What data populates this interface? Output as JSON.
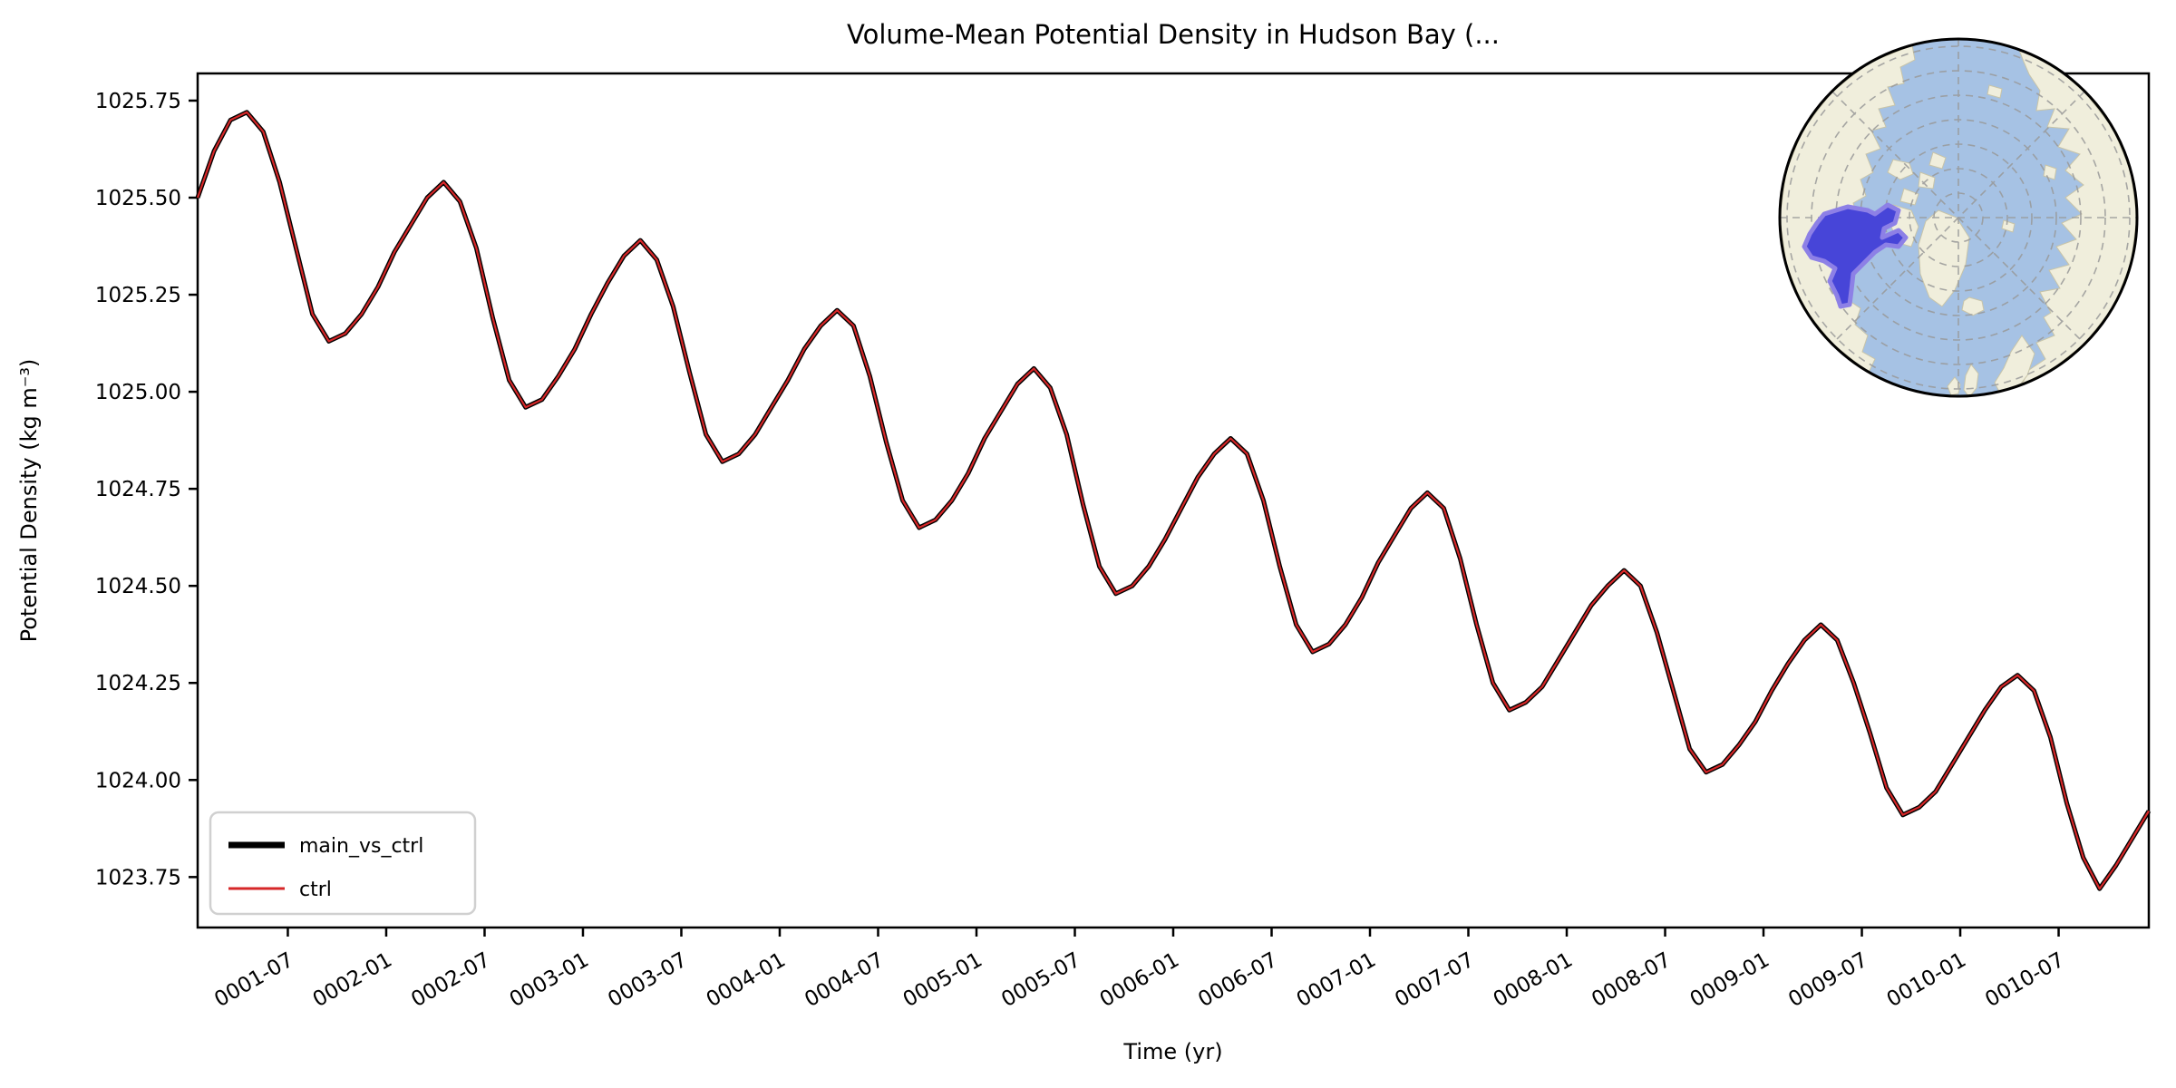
{
  "figure": {
    "background": "#ffffff"
  },
  "chart_data": {
    "type": "line",
    "title": "Volume-Mean Potential Density in Hudson Bay (...",
    "xlabel": "Time (yr)",
    "ylabel": "Potential Density (kg m⁻³)",
    "legend_position": "lower left",
    "grid": false,
    "ylim": [
      1023.62,
      1025.82
    ],
    "y_tick_labels": [
      "1023.75",
      "1024.00",
      "1024.25",
      "1024.50",
      "1024.75",
      "1025.00",
      "1025.25",
      "1025.50",
      "1025.75"
    ],
    "x_tick_labels": [
      "0001-07",
      "0002-01",
      "0002-07",
      "0003-01",
      "0003-07",
      "0004-01",
      "0004-07",
      "0005-01",
      "0005-07",
      "0006-01",
      "0006-07",
      "0007-01",
      "0007-07",
      "0008-01",
      "0008-07",
      "0009-01",
      "0009-07",
      "0010-01",
      "0010-07"
    ],
    "x": [
      "0001-01",
      "0001-02",
      "0001-03",
      "0001-04",
      "0001-05",
      "0001-06",
      "0001-07",
      "0001-08",
      "0001-09",
      "0001-10",
      "0001-11",
      "0001-12",
      "0002-01",
      "0002-02",
      "0002-03",
      "0002-04",
      "0002-05",
      "0002-06",
      "0002-07",
      "0002-08",
      "0002-09",
      "0002-10",
      "0002-11",
      "0002-12",
      "0003-01",
      "0003-02",
      "0003-03",
      "0003-04",
      "0003-05",
      "0003-06",
      "0003-07",
      "0003-08",
      "0003-09",
      "0003-10",
      "0003-11",
      "0003-12",
      "0004-01",
      "0004-02",
      "0004-03",
      "0004-04",
      "0004-05",
      "0004-06",
      "0004-07",
      "0004-08",
      "0004-09",
      "0004-10",
      "0004-11",
      "0004-12",
      "0005-01",
      "0005-02",
      "0005-03",
      "0005-04",
      "0005-05",
      "0005-06",
      "0005-07",
      "0005-08",
      "0005-09",
      "0005-10",
      "0005-11",
      "0005-12",
      "0006-01",
      "0006-02",
      "0006-03",
      "0006-04",
      "0006-05",
      "0006-06",
      "0006-07",
      "0006-08",
      "0006-09",
      "0006-10",
      "0006-11",
      "0006-12",
      "0007-01",
      "0007-02",
      "0007-03",
      "0007-04",
      "0007-05",
      "0007-06",
      "0007-07",
      "0007-08",
      "0007-09",
      "0007-10",
      "0007-11",
      "0007-12",
      "0008-01",
      "0008-02",
      "0008-03",
      "0008-04",
      "0008-05",
      "0008-06",
      "0008-07",
      "0008-08",
      "0008-09",
      "0008-10",
      "0008-11",
      "0008-12",
      "0009-01",
      "0009-02",
      "0009-03",
      "0009-04",
      "0009-05",
      "0009-06",
      "0009-07",
      "0009-08",
      "0009-09",
      "0009-10",
      "0009-11",
      "0009-12",
      "0010-01",
      "0010-02",
      "0010-03",
      "0010-04",
      "0010-05",
      "0010-06",
      "0010-07",
      "0010-08",
      "0010-09",
      "0010-10",
      "0010-11",
      "0010-12"
    ],
    "series": [
      {
        "name": "main_vs_ctrl",
        "color": "#000000",
        "linewidth": 5,
        "values": [
          1025.5,
          1025.62,
          1025.7,
          1025.72,
          1025.67,
          1025.54,
          1025.37,
          1025.2,
          1025.13,
          1025.15,
          1025.2,
          1025.27,
          1025.36,
          1025.43,
          1025.5,
          1025.54,
          1025.49,
          1025.37,
          1025.19,
          1025.03,
          1024.96,
          1024.98,
          1025.04,
          1025.11,
          1025.2,
          1025.28,
          1025.35,
          1025.39,
          1025.34,
          1025.22,
          1025.05,
          1024.89,
          1024.82,
          1024.84,
          1024.89,
          1024.96,
          1025.03,
          1025.11,
          1025.17,
          1025.21,
          1025.17,
          1025.04,
          1024.87,
          1024.72,
          1024.65,
          1024.67,
          1024.72,
          1024.79,
          1024.88,
          1024.95,
          1025.02,
          1025.06,
          1025.01,
          1024.89,
          1024.71,
          1024.55,
          1024.48,
          1024.5,
          1024.55,
          1024.62,
          1024.7,
          1024.78,
          1024.84,
          1024.88,
          1024.84,
          1024.72,
          1024.55,
          1024.4,
          1024.33,
          1024.35,
          1024.4,
          1024.47,
          1024.56,
          1024.63,
          1024.7,
          1024.74,
          1024.7,
          1024.57,
          1024.4,
          1024.25,
          1024.18,
          1024.2,
          1024.24,
          1024.31,
          1024.38,
          1024.45,
          1024.5,
          1024.54,
          1024.5,
          1024.38,
          1024.23,
          1024.08,
          1024.02,
          1024.04,
          1024.09,
          1024.15,
          1024.23,
          1024.3,
          1024.36,
          1024.4,
          1024.36,
          1024.25,
          1024.12,
          1023.98,
          1023.91,
          1023.93,
          1023.97,
          1024.04,
          1024.11,
          1024.18,
          1024.24,
          1024.27,
          1024.23,
          1024.11,
          1023.94,
          1023.8,
          1023.72,
          1023.78,
          1023.85,
          1023.92
        ]
      },
      {
        "name": "ctrl",
        "color": "#d62728",
        "linewidth": 2.2,
        "values": [
          1025.5,
          1025.62,
          1025.7,
          1025.72,
          1025.67,
          1025.54,
          1025.37,
          1025.2,
          1025.13,
          1025.15,
          1025.2,
          1025.27,
          1025.36,
          1025.43,
          1025.5,
          1025.54,
          1025.49,
          1025.37,
          1025.19,
          1025.03,
          1024.96,
          1024.98,
          1025.04,
          1025.11,
          1025.2,
          1025.28,
          1025.35,
          1025.39,
          1025.34,
          1025.22,
          1025.05,
          1024.89,
          1024.82,
          1024.84,
          1024.89,
          1024.96,
          1025.03,
          1025.11,
          1025.17,
          1025.21,
          1025.17,
          1025.04,
          1024.87,
          1024.72,
          1024.65,
          1024.67,
          1024.72,
          1024.79,
          1024.88,
          1024.95,
          1025.02,
          1025.06,
          1025.01,
          1024.89,
          1024.71,
          1024.55,
          1024.48,
          1024.5,
          1024.55,
          1024.62,
          1024.7,
          1024.78,
          1024.84,
          1024.88,
          1024.84,
          1024.72,
          1024.55,
          1024.4,
          1024.33,
          1024.35,
          1024.4,
          1024.47,
          1024.56,
          1024.63,
          1024.7,
          1024.74,
          1024.7,
          1024.57,
          1024.4,
          1024.25,
          1024.18,
          1024.2,
          1024.24,
          1024.31,
          1024.38,
          1024.45,
          1024.5,
          1024.54,
          1024.5,
          1024.38,
          1024.23,
          1024.08,
          1024.02,
          1024.04,
          1024.09,
          1024.15,
          1024.23,
          1024.3,
          1024.36,
          1024.4,
          1024.36,
          1024.25,
          1024.12,
          1023.98,
          1023.91,
          1023.93,
          1023.97,
          1024.04,
          1024.11,
          1024.18,
          1024.24,
          1024.27,
          1024.23,
          1024.11,
          1023.94,
          1023.8,
          1023.72,
          1023.78,
          1023.85,
          1023.92
        ]
      }
    ]
  },
  "inset_map": {
    "projection": "north-polar-stereographic",
    "highlight_region": "Hudson Bay",
    "ocean_color": "#a6c2e4",
    "land_color": "#f0eedc",
    "highlight_fill": "#4745d8",
    "highlight_stroke": "#8d80e6",
    "graticule_color": "#999999",
    "outline_color": "#000000"
  }
}
